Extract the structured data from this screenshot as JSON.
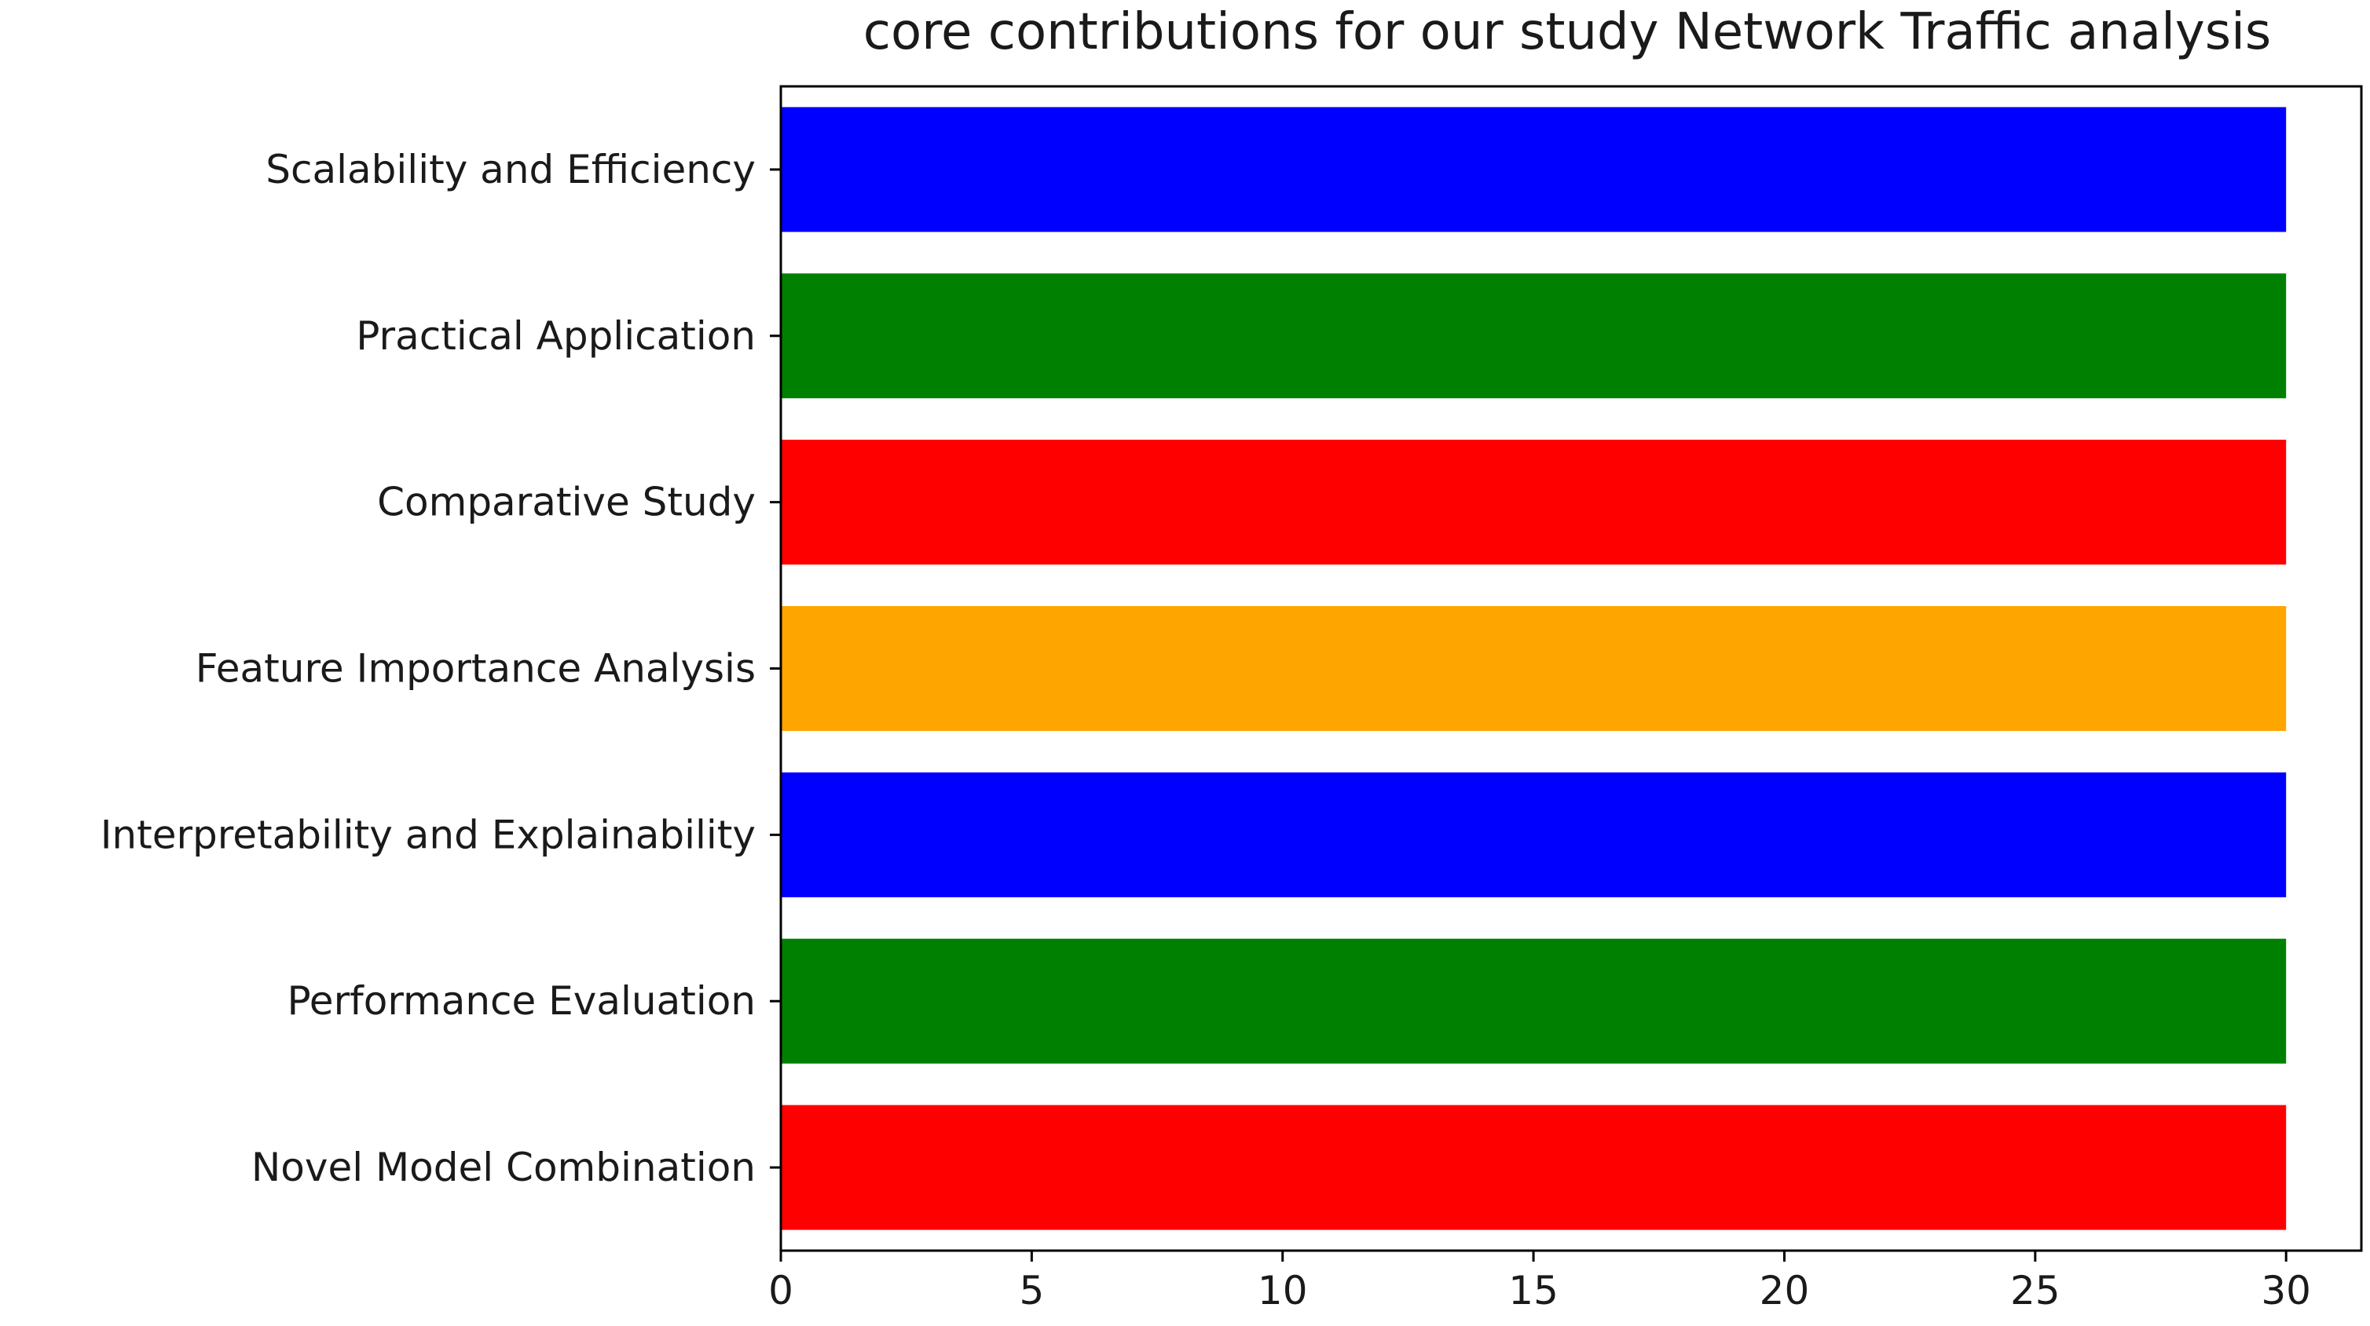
{
  "chart_data": {
    "type": "bar",
    "orientation": "horizontal",
    "title": "core contributions for our study Network Traffic analysis",
    "xlabel": "",
    "ylabel": "",
    "categories": [
      "Novel Model Combination ",
      "Performance Evaluation",
      "Interpretability and Explainability",
      "Feature Importance Analysis",
      "Comparative Study",
      "Practical Application",
      "Scalability and Efficiency"
    ],
    "values": [
      30,
      30,
      30,
      30,
      30,
      30,
      30
    ],
    "colors": [
      "#ff0000",
      "#008000",
      "#0000ff",
      "#ffa500",
      "#ff0000",
      "#008000",
      "#0000ff"
    ],
    "xlim": [
      0,
      31.5
    ],
    "xticks": [
      0,
      5,
      10,
      15,
      20,
      25,
      30
    ],
    "grid": false,
    "legend": "none"
  }
}
